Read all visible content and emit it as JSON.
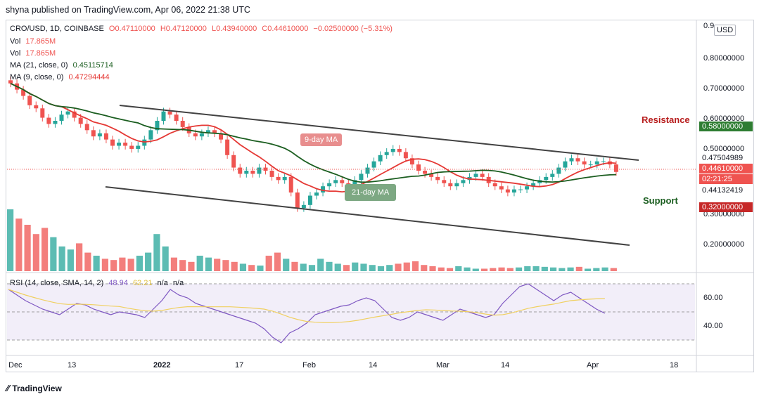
{
  "header": {
    "text": "shyna published on TradingView.com, Apr 06, 2022 21:38 UTC"
  },
  "symbol_line": {
    "symbol": "CRO/USD, 1D, COINBASE",
    "o": "O0.47110000",
    "h": "H0.47120000",
    "l": "L0.43940000",
    "c": "C0.44610000",
    "chg": "−0.02500000 (−5.31%)"
  },
  "vol1": {
    "label": "Vol",
    "value": "17.865M"
  },
  "vol2": {
    "label": "Vol",
    "value": "17.865M"
  },
  "ma21": {
    "label": "MA (21, close, 0)",
    "value": "0.45115714"
  },
  "ma9": {
    "label": "MA (9, close, 0)",
    "value": "0.47294444"
  },
  "rsi": {
    "label": "RSI (14, close, SMA, 14, 2)",
    "v1": "48.94",
    "v2": "62.21",
    "v3": "n/a",
    "v4": "n/a"
  },
  "price_axis": {
    "currency": "USD",
    "ticks": [
      "0.9",
      "0.80000000",
      "0.70000000",
      "0.60000000",
      "0.50000000",
      "0.30000000",
      "0.20000000"
    ],
    "rsi_ticks": [
      "60.00",
      "40.00"
    ]
  },
  "labels": {
    "resistance": "Resistance",
    "support": "Support",
    "resistance_price": "0.58000000",
    "support_price": "0.32000000",
    "ma9_price": "0.47504989",
    "last_price": "0.44610000",
    "countdown": "02:21:25",
    "ma21_price": "0.44132419",
    "ma9_badge": "9-day MA",
    "ma21_badge": "21-day MA"
  },
  "x_axis": [
    "Dec",
    "13",
    "2022",
    "17",
    "Feb",
    "14",
    "Mar",
    "14",
    "Apr",
    "18"
  ],
  "brand": "TradingView",
  "colors": {
    "up": "#26a69a",
    "down": "#ef5350",
    "ma9": "#e53935",
    "ma21": "#1b5e20",
    "resistance": "#b71c1c",
    "support": "#b71c1c",
    "rsi": "#7e57c2",
    "rsi_ma": "#f0d060"
  },
  "chart_data": {
    "type": "candlestick",
    "title": "CRO/USD, 1D, COINBASE",
    "ylim": [
      0.13,
      0.93
    ],
    "closes": [
      0.73,
      0.71,
      0.69,
      0.66,
      0.65,
      0.62,
      0.6,
      0.61,
      0.63,
      0.64,
      0.62,
      0.6,
      0.58,
      0.56,
      0.57,
      0.55,
      0.53,
      0.54,
      0.53,
      0.52,
      0.53,
      0.55,
      0.58,
      0.61,
      0.64,
      0.63,
      0.61,
      0.59,
      0.57,
      0.56,
      0.57,
      0.58,
      0.57,
      0.55,
      0.5,
      0.46,
      0.44,
      0.45,
      0.44,
      0.46,
      0.45,
      0.43,
      0.42,
      0.43,
      0.38,
      0.33,
      0.34,
      0.37,
      0.38,
      0.4,
      0.41,
      0.42,
      0.41,
      0.4,
      0.42,
      0.44,
      0.46,
      0.48,
      0.5,
      0.51,
      0.52,
      0.51,
      0.49,
      0.47,
      0.45,
      0.44,
      0.43,
      0.42,
      0.41,
      0.4,
      0.41,
      0.42,
      0.43,
      0.44,
      0.43,
      0.41,
      0.4,
      0.39,
      0.38,
      0.39,
      0.39,
      0.4,
      0.41,
      0.42,
      0.43,
      0.44,
      0.46,
      0.48,
      0.49,
      0.48,
      0.47,
      0.47,
      0.48,
      0.48,
      0.47,
      0.446
    ],
    "rsi": [
      66,
      62,
      58,
      55,
      52,
      50,
      48,
      52,
      56,
      55,
      52,
      50,
      48,
      50,
      49,
      48,
      46,
      52,
      58,
      66,
      62,
      60,
      56,
      54,
      52,
      50,
      48,
      46,
      44,
      42,
      38,
      32,
      28,
      35,
      38,
      42,
      48,
      50,
      52,
      54,
      55,
      58,
      60,
      58,
      52,
      46,
      44,
      46,
      50,
      48,
      46,
      44,
      48,
      52,
      50,
      48,
      46,
      48,
      56,
      62,
      68,
      70,
      66,
      62,
      58,
      62,
      64,
      60,
      56,
      52,
      49
    ],
    "volume": [
      100,
      85,
      75,
      60,
      70,
      55,
      40,
      35,
      45,
      30,
      25,
      20,
      18,
      22,
      20,
      25,
      30,
      60,
      40,
      22,
      18,
      15,
      25,
      22,
      20,
      18,
      15,
      12,
      10,
      9,
      25,
      30,
      20,
      15,
      12,
      10,
      20,
      15,
      12,
      10,
      14,
      12,
      10,
      8,
      10,
      12,
      14,
      16,
      10,
      8,
      6,
      5,
      8,
      6,
      4,
      4,
      5,
      6,
      5,
      6,
      8,
      8,
      7,
      6,
      5,
      6,
      7,
      4,
      5,
      6,
      5
    ]
  }
}
